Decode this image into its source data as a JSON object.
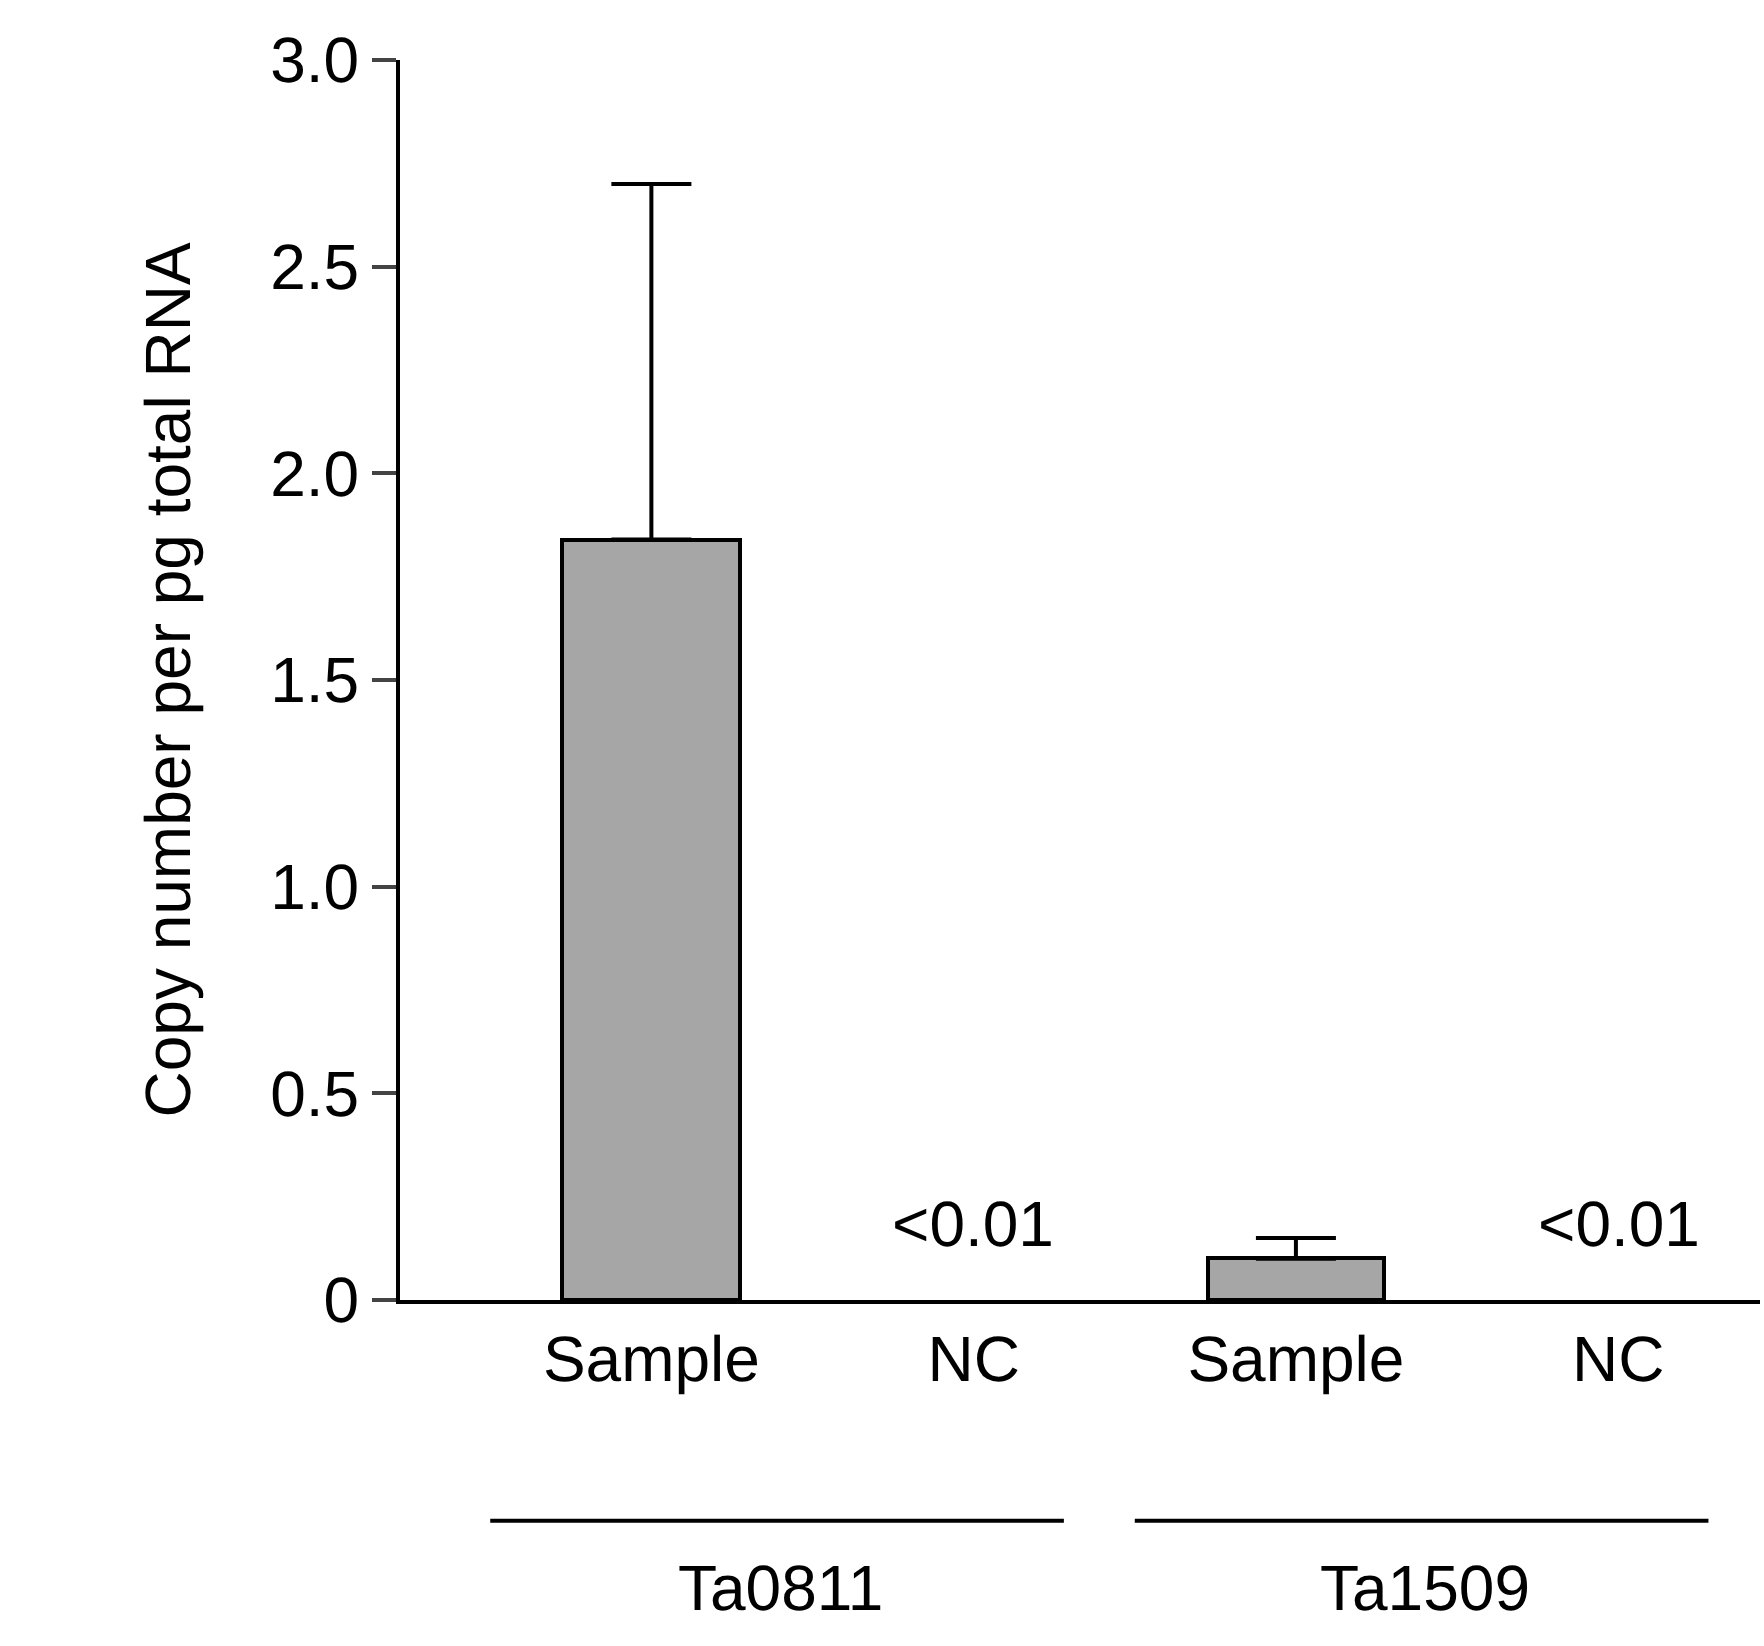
{
  "chart_data": {
    "type": "bar",
    "ylabel": "Copy number per pg total RNA",
    "categories": [
      "Sample",
      "NC",
      "Sample",
      "NC"
    ],
    "values": [
      1.84,
      null,
      0.1,
      null
    ],
    "value_labels": [
      null,
      "<0.01",
      null,
      "<0.01"
    ],
    "errors": [
      [
        1.84,
        2.7
      ],
      null,
      [
        0.1,
        0.15
      ],
      null
    ],
    "color": "#a6a6a6",
    "ylim": [
      0,
      3.0
    ],
    "yticks": [
      0,
      0.5,
      {
        "value": 1,
        "label": "1.0"
      },
      1.5,
      {
        "value": 2,
        "label": "2.0"
      },
      2.5,
      {
        "value": 3,
        "label": "3.0"
      }
    ],
    "annotations": [
      "Ta0811",
      "Ta1509"
    ]
  }
}
